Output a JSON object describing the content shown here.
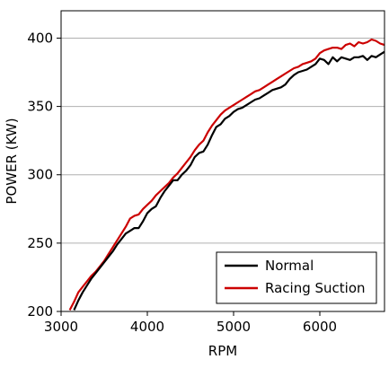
{
  "chart_data": {
    "type": "line",
    "xlabel": "RPM",
    "ylabel": "POWER (KW)",
    "xlim": [
      3000,
      6750
    ],
    "ylim": [
      200,
      420
    ],
    "xticks": [
      "3000",
      "4000",
      "5000",
      "6000"
    ],
    "yticks": [
      "200",
      "250",
      "300",
      "350",
      "400"
    ],
    "grid": "horizontal",
    "legend_position": "bottom-right",
    "series": [
      {
        "name": "Normal",
        "color": "#000000",
        "x": [
          3150,
          3200,
          3250,
          3300,
          3350,
          3400,
          3450,
          3500,
          3550,
          3600,
          3650,
          3700,
          3750,
          3800,
          3850,
          3900,
          3950,
          4000,
          4050,
          4100,
          4150,
          4200,
          4250,
          4300,
          4350,
          4400,
          4450,
          4500,
          4550,
          4600,
          4650,
          4700,
          4750,
          4800,
          4850,
          4900,
          4950,
          5000,
          5050,
          5100,
          5150,
          5200,
          5250,
          5300,
          5350,
          5400,
          5450,
          5500,
          5550,
          5600,
          5650,
          5700,
          5750,
          5800,
          5850,
          5900,
          5950,
          6000,
          6050,
          6100,
          6150,
          6200,
          6250,
          6300,
          6350,
          6400,
          6450,
          6500,
          6550,
          6600,
          6650,
          6700,
          6750
        ],
        "values": [
          201,
          208,
          214,
          219,
          224,
          228,
          232,
          236,
          240,
          244,
          249,
          253,
          257,
          259,
          261,
          261,
          266,
          272,
          275,
          277,
          283,
          288,
          292,
          296,
          296,
          300,
          303,
          307,
          313,
          316,
          317,
          322,
          329,
          335,
          337,
          341,
          343,
          346,
          348,
          349,
          351,
          353,
          355,
          356,
          358,
          360,
          362,
          363,
          364,
          366,
          370,
          373,
          375,
          376,
          377,
          379,
          381,
          385,
          384,
          381,
          386,
          383,
          386,
          385,
          384,
          386,
          386,
          387,
          384,
          387,
          386,
          388,
          390
        ]
      },
      {
        "name": "Racing Suction",
        "color": "#cc0000",
        "x": [
          3100,
          3150,
          3200,
          3250,
          3300,
          3350,
          3400,
          3450,
          3500,
          3550,
          3600,
          3650,
          3700,
          3750,
          3800,
          3850,
          3900,
          3950,
          4000,
          4050,
          4100,
          4150,
          4200,
          4250,
          4300,
          4350,
          4400,
          4450,
          4500,
          4550,
          4600,
          4650,
          4700,
          4750,
          4800,
          4850,
          4900,
          4950,
          5000,
          5050,
          5100,
          5150,
          5200,
          5250,
          5300,
          5350,
          5400,
          5450,
          5500,
          5550,
          5600,
          5650,
          5700,
          5750,
          5800,
          5850,
          5900,
          5950,
          6000,
          6050,
          6100,
          6150,
          6200,
          6250,
          6300,
          6350,
          6400,
          6450,
          6500,
          6550,
          6600,
          6650,
          6700,
          6750
        ],
        "values": [
          201,
          207,
          214,
          218,
          222,
          226,
          229,
          233,
          237,
          242,
          247,
          252,
          257,
          262,
          268,
          270,
          271,
          275,
          278,
          281,
          285,
          288,
          291,
          294,
          298,
          301,
          305,
          309,
          313,
          318,
          322,
          325,
          331,
          336,
          340,
          344,
          347,
          349,
          351,
          353,
          355,
          357,
          359,
          361,
          362,
          364,
          366,
          368,
          370,
          372,
          374,
          376,
          378,
          379,
          381,
          382,
          383,
          385,
          389,
          391,
          392,
          393,
          393,
          392,
          395,
          396,
          394,
          397,
          396,
          397,
          399,
          398,
          396,
          395
        ]
      }
    ]
  }
}
